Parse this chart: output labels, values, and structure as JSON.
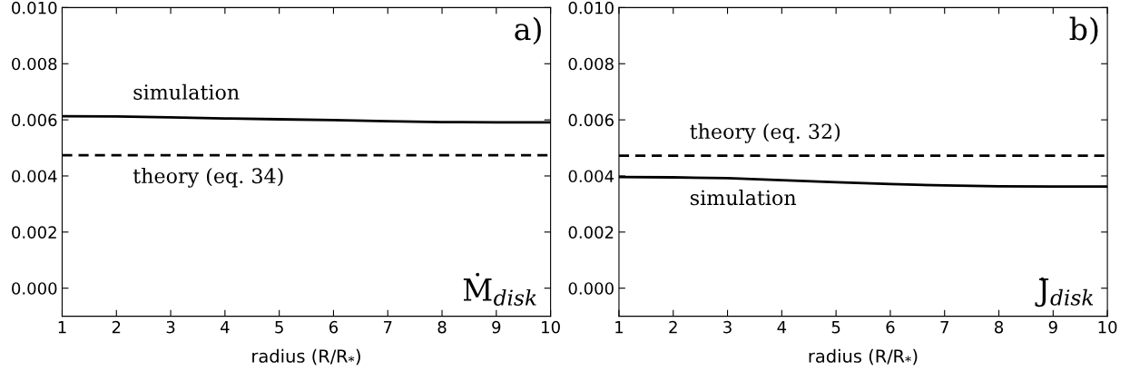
{
  "chart_data": [
    {
      "type": "line",
      "xlabel": "radius (R/R$_{*}$)",
      "xlim": [
        1,
        10
      ],
      "xticks": [
        1,
        2,
        3,
        4,
        5,
        6,
        7,
        8,
        9,
        10
      ],
      "ylim": [
        -0.001,
        0.01
      ],
      "yticks": [
        {
          "value": 0.0,
          "label": "0.000"
        },
        {
          "value": 0.002,
          "label": "0.002"
        },
        {
          "value": 0.004,
          "label": "0.004"
        },
        {
          "value": 0.006,
          "label": "0.006"
        },
        {
          "value": 0.008,
          "label": "0.008"
        },
        {
          "value": 0.01,
          "label": "0.010"
        }
      ],
      "series": [
        {
          "name": "simulation",
          "color": "#000000",
          "line_style": "solid",
          "x": [
            1,
            2,
            3,
            4,
            5,
            6,
            7,
            8,
            9,
            10
          ],
          "values": [
            0.00613,
            0.00612,
            0.00609,
            0.00605,
            0.00602,
            0.00599,
            0.00595,
            0.00592,
            0.00591,
            0.00591
          ]
        },
        {
          "name": "theory (eq. 34)",
          "color": "#000000",
          "line_style": "dashed",
          "x": [
            1,
            10
          ],
          "values": [
            0.00474,
            0.00474
          ]
        }
      ],
      "annotations": [
        "a)",
        "Ṁ$_{disk}$"
      ]
    },
    {
      "type": "line",
      "xlabel": "radius (R/R$_{*}$)",
      "xlim": [
        1,
        10
      ],
      "xticks": [
        1,
        2,
        3,
        4,
        5,
        6,
        7,
        8,
        9,
        10
      ],
      "ylim": [
        -0.001,
        0.01
      ],
      "yticks": [
        {
          "value": 0.0,
          "label": "0.000"
        },
        {
          "value": 0.002,
          "label": "0.002"
        },
        {
          "value": 0.004,
          "label": "0.004"
        },
        {
          "value": 0.006,
          "label": "0.006"
        },
        {
          "value": 0.008,
          "label": "0.008"
        },
        {
          "value": 0.01,
          "label": "0.010"
        }
      ],
      "series": [
        {
          "name": "simulation",
          "color": "#000000",
          "line_style": "solid",
          "x": [
            1,
            2,
            3,
            4,
            5,
            6,
            7,
            8,
            9,
            10
          ],
          "values": [
            0.00396,
            0.00395,
            0.00392,
            0.00385,
            0.00378,
            0.00371,
            0.00366,
            0.00363,
            0.00362,
            0.00362
          ]
        },
        {
          "name": "theory (eq. 32)",
          "color": "#000000",
          "line_style": "dashed",
          "x": [
            1,
            10
          ],
          "values": [
            0.00472,
            0.00472
          ]
        }
      ],
      "annotations": [
        "b)",
        "J̇$_{disk}$"
      ]
    }
  ]
}
